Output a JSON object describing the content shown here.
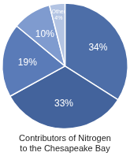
{
  "chart_data": {
    "type": "pie",
    "title": [
      "Contributors of Nitrogen",
      "to the Chesapeake Bay"
    ],
    "categories": [
      null,
      null,
      null,
      null,
      "Other"
    ],
    "values": [
      34,
      33,
      19,
      10,
      4
    ],
    "value_labels": [
      "34%",
      "33%",
      "19%",
      "10%",
      "4%"
    ],
    "colors": [
      "#4d6ea8",
      "#43639c",
      "#5a7bb8",
      "#7f9bcf",
      "#b3c4e3"
    ],
    "data_labels": true
  }
}
